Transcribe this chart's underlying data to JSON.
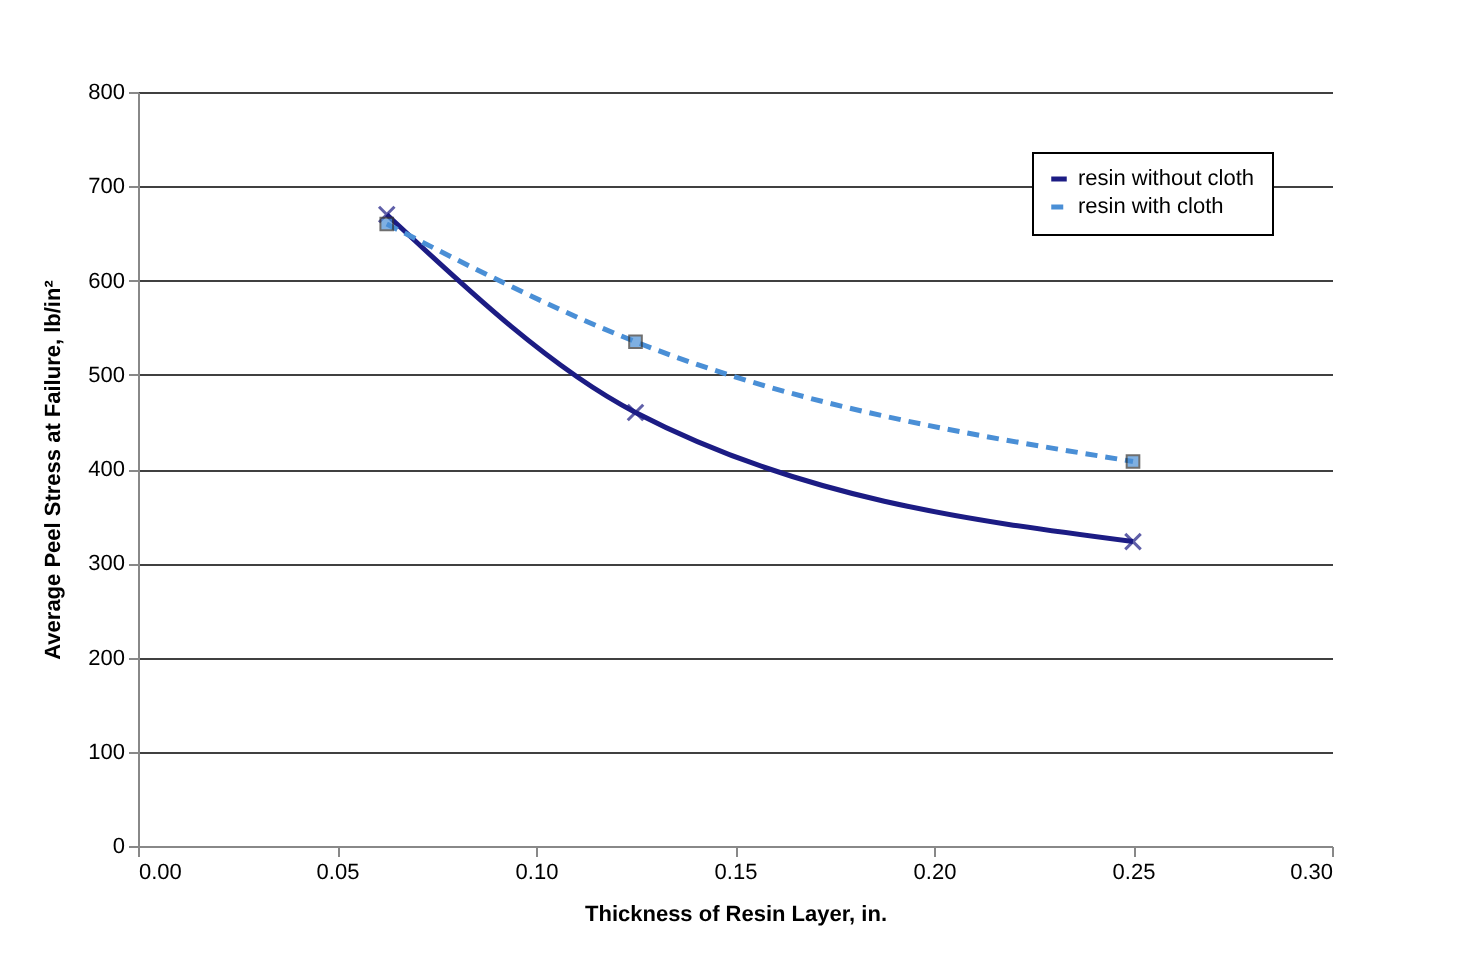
{
  "chart_data": {
    "type": "line",
    "xlabel": "Thickness of Resin Layer, in.",
    "ylabel": "Average Peel Stress at Failure, lb/in²",
    "x": [
      0.0625,
      0.125,
      0.25
    ],
    "series": [
      {
        "name": "resin without cloth",
        "color": "#1c1c84",
        "values": [
          670,
          460,
          323
        ],
        "marker": "cross",
        "line_style": "solid"
      },
      {
        "name": "resin with cloth",
        "color": "#4a8fd6",
        "values": [
          660,
          535,
          408
        ],
        "marker": "square",
        "line_style": "dashed"
      }
    ],
    "xlim": [
      0,
      0.3
    ],
    "xticks": [
      {
        "value": 0,
        "label": "0.00"
      },
      {
        "value": 0.05,
        "label": "0.05"
      },
      {
        "value": 0.1,
        "label": "0.10"
      },
      {
        "value": 0.15,
        "label": "0.15"
      },
      {
        "value": 0.2,
        "label": "0.20"
      },
      {
        "value": 0.25,
        "label": "0.25"
      },
      {
        "value": 0.3,
        "label": "0.30"
      }
    ],
    "ylim": [
      0,
      800
    ],
    "yticks": [
      0,
      100,
      200,
      300,
      400,
      500,
      600,
      700,
      800
    ],
    "grid": "y",
    "legend": "top right"
  }
}
